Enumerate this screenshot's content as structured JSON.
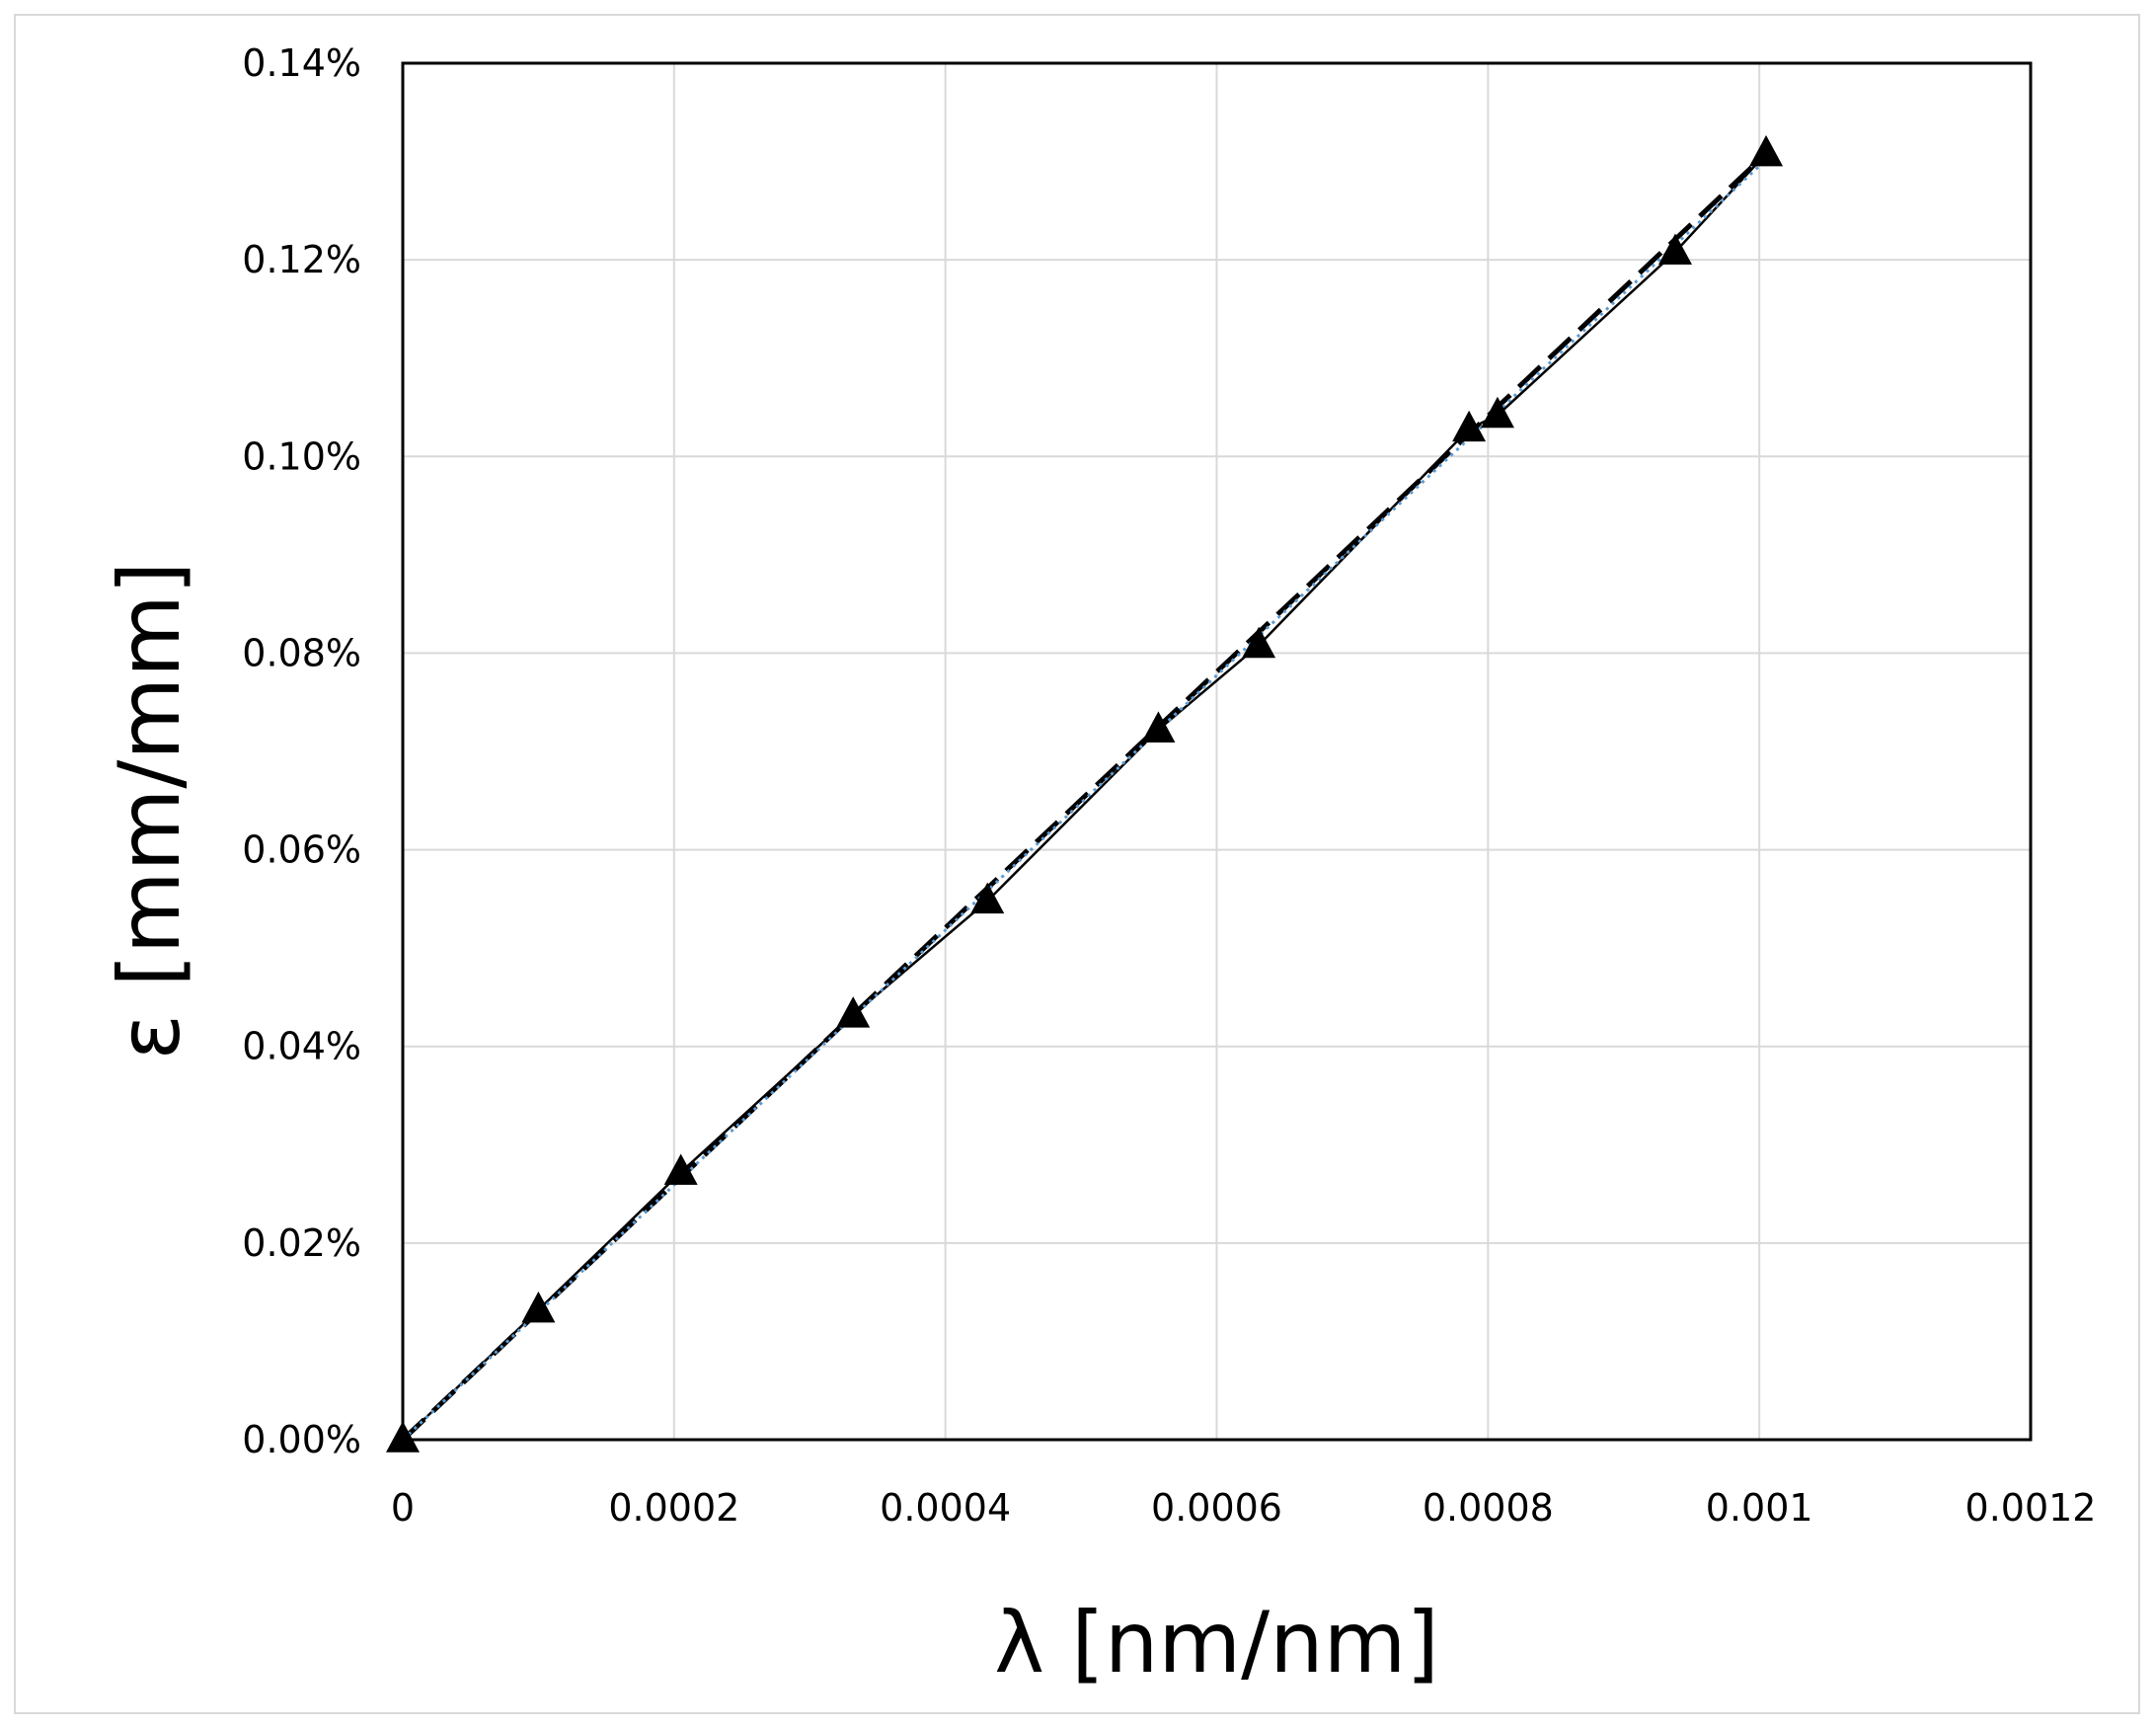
{
  "chart_data": {
    "type": "scatter",
    "xlabel": "λ [nm/nm]",
    "ylabel": "ε [mm/mm]",
    "xlim": [
      0,
      0.0012
    ],
    "ylim": [
      0,
      0.14
    ],
    "x_ticks": [
      "0",
      "0.0002",
      "0.0004",
      "0.0006",
      "0.0008",
      "0.001",
      "0.0012"
    ],
    "y_ticks": [
      "0.00%",
      "0.02%",
      "0.04%",
      "0.06%",
      "0.08%",
      "0.10%",
      "0.12%",
      "0.14%"
    ],
    "grid": true,
    "legend": "none",
    "series": [
      {
        "style": "solid-line-triangle-markers",
        "color": "#000000",
        "x": [
          0,
          0.0001,
          0.000205,
          0.000332,
          0.000431,
          0.000557,
          0.000631,
          0.000786,
          0.000807,
          0.000938,
          0.001005
        ],
        "y": [
          0,
          0.0132,
          0.0272,
          0.0432,
          0.0548,
          0.0722,
          0.0808,
          0.1028,
          0.1042,
          0.1208,
          0.1308
        ]
      },
      {
        "style": "dashed-line",
        "color": "#000000",
        "x": [
          0,
          0.001005
        ],
        "y": [
          0,
          0.1308
        ]
      },
      {
        "style": "dotted-line",
        "color": "#5b9bd5",
        "x": [
          0,
          0.001005
        ],
        "y": [
          0,
          0.1302
        ]
      }
    ]
  }
}
